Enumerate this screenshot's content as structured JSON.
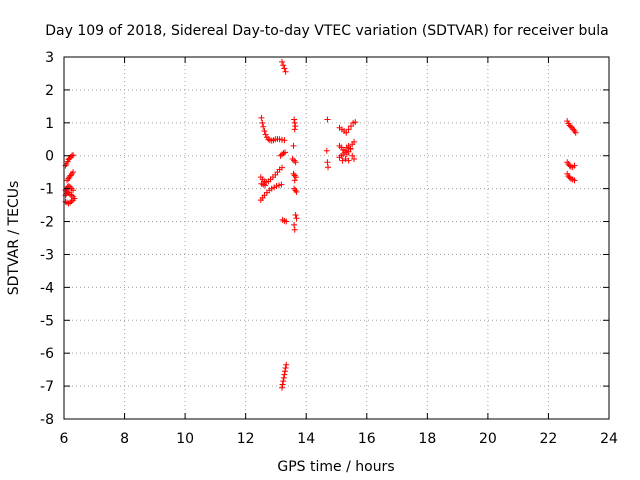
{
  "chart_data": {
    "type": "scatter",
    "title": "Day 109 of 2018, Sidereal Day-to-day VTEC variation (SDTVAR) for receiver bula",
    "xlabel": "GPS time / hours",
    "ylabel": "SDTVAR / TECUs",
    "xlim": [
      6,
      24
    ],
    "ylim": [
      -8,
      3
    ],
    "x_ticks": [
      6,
      8,
      10,
      12,
      14,
      16,
      18,
      20,
      22,
      24
    ],
    "y_ticks": [
      -8,
      -7,
      -6,
      -5,
      -4,
      -3,
      -2,
      -1,
      0,
      1,
      2,
      3
    ],
    "grid": true,
    "legend": "none",
    "marker": "+",
    "colors": {
      "points": "#ff0000",
      "grid": "#a0a0a0",
      "frame": "#000000"
    },
    "series": [
      {
        "points": [
          [
            6.05,
            -0.3
          ],
          [
            6.08,
            -0.25
          ],
          [
            6.12,
            -0.18
          ],
          [
            6.15,
            -0.12
          ],
          [
            6.18,
            -0.08
          ],
          [
            6.22,
            -0.04
          ],
          [
            6.26,
            0.0
          ],
          [
            6.3,
            0.02
          ],
          [
            6.1,
            -0.75
          ],
          [
            6.14,
            -0.7
          ],
          [
            6.18,
            -0.65
          ],
          [
            6.22,
            -0.6
          ],
          [
            6.26,
            -0.55
          ],
          [
            6.3,
            -0.5
          ],
          [
            6.05,
            -1.05
          ],
          [
            6.08,
            -1.0
          ],
          [
            6.12,
            -0.95
          ],
          [
            6.16,
            -0.92
          ],
          [
            6.2,
            -0.95
          ],
          [
            6.25,
            -1.0
          ],
          [
            6.3,
            -1.05
          ],
          [
            6.05,
            -1.2
          ],
          [
            6.08,
            -1.15
          ],
          [
            6.12,
            -1.1
          ],
          [
            6.16,
            -1.12
          ],
          [
            6.2,
            -1.18
          ],
          [
            6.25,
            -1.2
          ],
          [
            6.3,
            -1.25
          ],
          [
            6.05,
            -1.4
          ],
          [
            6.1,
            -1.42
          ],
          [
            6.15,
            -1.45
          ],
          [
            6.2,
            -1.42
          ],
          [
            6.25,
            -1.38
          ],
          [
            6.3,
            -1.35
          ],
          [
            6.34,
            -1.3
          ],
          [
            12.52,
            1.15
          ],
          [
            12.55,
            1.0
          ],
          [
            12.58,
            0.88
          ],
          [
            12.62,
            0.75
          ],
          [
            12.66,
            0.64
          ],
          [
            12.7,
            0.56
          ],
          [
            12.75,
            0.5
          ],
          [
            12.8,
            0.47
          ],
          [
            12.86,
            0.46
          ],
          [
            12.92,
            0.47
          ],
          [
            12.98,
            0.5
          ],
          [
            13.05,
            0.51
          ],
          [
            13.12,
            0.5
          ],
          [
            13.2,
            0.48
          ],
          [
            13.28,
            0.47
          ],
          [
            13.15,
            0.0
          ],
          [
            13.2,
            0.04
          ],
          [
            13.25,
            0.08
          ],
          [
            13.3,
            0.1
          ],
          [
            12.5,
            -0.65
          ],
          [
            12.56,
            -0.72
          ],
          [
            12.62,
            -0.78
          ],
          [
            12.68,
            -0.8
          ],
          [
            12.75,
            -0.78
          ],
          [
            12.82,
            -0.72
          ],
          [
            12.9,
            -0.65
          ],
          [
            12.98,
            -0.58
          ],
          [
            13.05,
            -0.5
          ],
          [
            13.12,
            -0.42
          ],
          [
            13.2,
            -0.36
          ],
          [
            12.52,
            -0.85
          ],
          [
            12.58,
            -0.88
          ],
          [
            12.64,
            -0.9
          ],
          [
            12.5,
            -1.35
          ],
          [
            12.56,
            -1.28
          ],
          [
            12.62,
            -1.2
          ],
          [
            12.7,
            -1.12
          ],
          [
            12.78,
            -1.05
          ],
          [
            12.86,
            -1.0
          ],
          [
            12.94,
            -0.96
          ],
          [
            13.02,
            -0.92
          ],
          [
            13.1,
            -0.9
          ],
          [
            13.18,
            -0.88
          ],
          [
            13.22,
            -1.95
          ],
          [
            13.28,
            -1.98
          ],
          [
            13.34,
            -2.0
          ],
          [
            13.2,
            2.85
          ],
          [
            13.24,
            2.75
          ],
          [
            13.28,
            2.65
          ],
          [
            13.32,
            2.55
          ],
          [
            13.2,
            -7.05
          ],
          [
            13.22,
            -6.95
          ],
          [
            13.24,
            -6.85
          ],
          [
            13.26,
            -6.75
          ],
          [
            13.28,
            -6.65
          ],
          [
            13.3,
            -6.55
          ],
          [
            13.32,
            -6.45
          ],
          [
            13.34,
            -6.35
          ],
          [
            13.6,
            1.1
          ],
          [
            13.62,
            1.0
          ],
          [
            13.64,
            0.9
          ],
          [
            13.62,
            0.8
          ],
          [
            13.58,
            0.3
          ],
          [
            13.55,
            -0.1
          ],
          [
            13.6,
            -0.15
          ],
          [
            13.65,
            -0.2
          ],
          [
            13.58,
            -0.55
          ],
          [
            13.62,
            -0.6
          ],
          [
            13.66,
            -0.65
          ],
          [
            13.62,
            -0.75
          ],
          [
            13.6,
            -1.0
          ],
          [
            13.64,
            -1.05
          ],
          [
            13.68,
            -1.1
          ],
          [
            13.65,
            -1.8
          ],
          [
            13.68,
            -1.9
          ],
          [
            13.6,
            -2.1
          ],
          [
            13.62,
            -2.25
          ],
          [
            14.7,
            1.1
          ],
          [
            14.68,
            0.15
          ],
          [
            14.7,
            -0.2
          ],
          [
            14.72,
            -0.35
          ],
          [
            15.1,
            0.85
          ],
          [
            15.18,
            0.8
          ],
          [
            15.25,
            0.75
          ],
          [
            15.32,
            0.7
          ],
          [
            15.4,
            0.8
          ],
          [
            15.48,
            0.9
          ],
          [
            15.55,
            1.0
          ],
          [
            15.62,
            1.02
          ],
          [
            15.1,
            0.3
          ],
          [
            15.16,
            0.25
          ],
          [
            15.22,
            0.18
          ],
          [
            15.28,
            0.1
          ],
          [
            15.34,
            0.05
          ],
          [
            15.4,
            0.12
          ],
          [
            15.46,
            0.22
          ],
          [
            15.52,
            0.35
          ],
          [
            15.58,
            0.42
          ],
          [
            15.1,
            -0.05
          ],
          [
            15.16,
            0.0
          ],
          [
            15.22,
            0.05
          ],
          [
            15.28,
            0.15
          ],
          [
            15.34,
            0.25
          ],
          [
            15.4,
            0.3
          ],
          [
            15.46,
            0.2
          ],
          [
            15.52,
            0.0
          ],
          [
            15.58,
            -0.1
          ],
          [
            15.2,
            -0.15
          ],
          [
            15.3,
            -0.1
          ],
          [
            15.4,
            -0.15
          ],
          [
            22.62,
            1.05
          ],
          [
            22.66,
            0.98
          ],
          [
            22.7,
            0.92
          ],
          [
            22.74,
            0.88
          ],
          [
            22.78,
            0.85
          ],
          [
            22.82,
            0.8
          ],
          [
            22.86,
            0.75
          ],
          [
            22.9,
            0.7
          ],
          [
            22.62,
            -0.2
          ],
          [
            22.66,
            -0.25
          ],
          [
            22.7,
            -0.3
          ],
          [
            22.74,
            -0.33
          ],
          [
            22.8,
            -0.35
          ],
          [
            22.86,
            -0.3
          ],
          [
            22.62,
            -0.55
          ],
          [
            22.66,
            -0.62
          ],
          [
            22.7,
            -0.66
          ],
          [
            22.74,
            -0.7
          ],
          [
            22.8,
            -0.72
          ],
          [
            22.86,
            -0.75
          ]
        ]
      }
    ]
  }
}
